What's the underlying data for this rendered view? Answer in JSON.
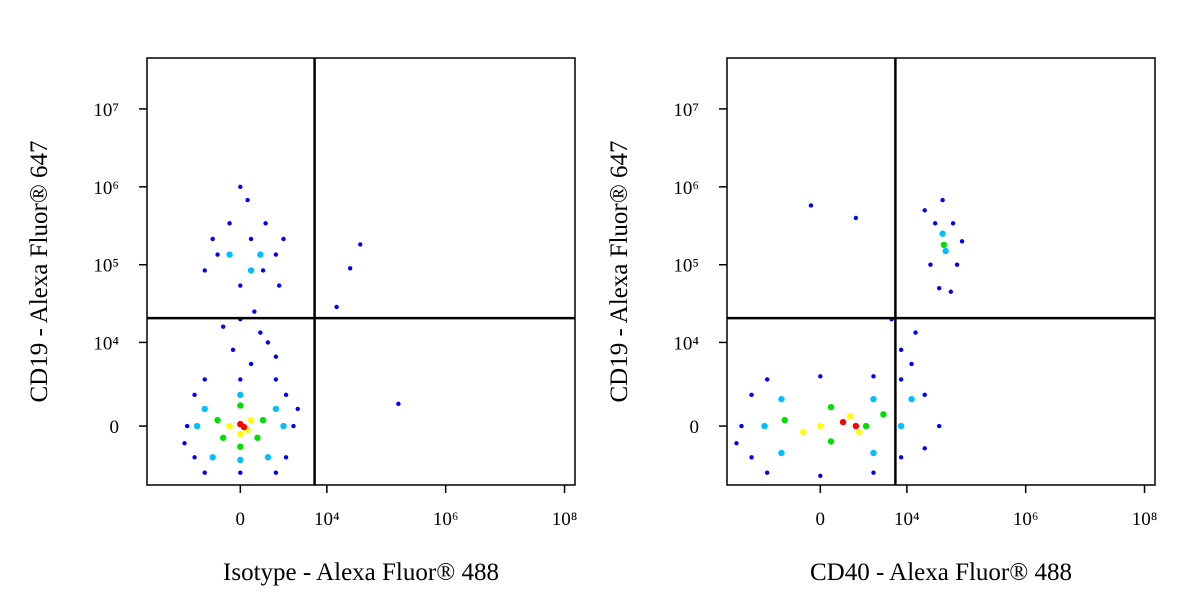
{
  "chart_data": [
    {
      "type": "scatter",
      "xlabel": "Isotype - Alexa Fluor® 488",
      "ylabel": "CD19 - Alexa Fluor® 647",
      "xscale": {
        "type": "arcsinh",
        "cofactor": 700
      },
      "yscale": {
        "type": "arcsinh",
        "cofactor": 1700
      },
      "xlim": [
        -13000,
        150000000
      ],
      "ylim": [
        -4700,
        45000000
      ],
      "xticks": [
        0,
        {
          "value": 10000,
          "label": "10⁴"
        },
        {
          "value": 1000000,
          "label": "10⁶"
        },
        {
          "value": 100000000,
          "label": "10⁸"
        }
      ],
      "yticks": [
        0,
        {
          "value": 10000,
          "label": "10⁴"
        },
        {
          "value": 100000,
          "label": "10⁵"
        },
        {
          "value": 1000000,
          "label": "10⁶"
        },
        {
          "value": 10000000,
          "label": "10⁷"
        }
      ],
      "gates": {
        "x": 6200,
        "y": 20600
      },
      "series": [
        {
          "color": "#0000ff",
          "x": [
            -2700,
            2700,
            -2000,
            2000,
            -2000,
            2000,
            0,
            0,
            -1300,
            1300,
            -1300,
            1300,
            -3000,
            3200,
            300,
            -200,
            600,
            0,
            900,
            -500,
            1300,
            400,
            0,
            700,
            -700,
            1300,
            300,
            -1300,
            1500,
            -300,
            800,
            200,
            -900,
            1800,
            0,
            36500,
            24700,
            14600,
            160000
          ],
          "values": [
            0,
            0,
            1800,
            1800,
            -1800,
            -1800,
            3160,
            -3160,
            3160,
            3160,
            -3160,
            -3160,
            -900,
            900,
            5200,
            8000,
            13400,
            20000,
            10000,
            16000,
            6500,
            25000,
            54000,
            84500,
            135000,
            135000,
            214000,
            84500,
            54000,
            340000,
            340000,
            676000,
            214000,
            214000,
            1000000,
            182000,
            90000,
            28700,
            1200
          ]
        },
        {
          "color": "#00bfff",
          "x": [
            -1300,
            1300,
            -900,
            900,
            0,
            0,
            -1800,
            1800,
            300,
            -300,
            600
          ],
          "values": [
            900,
            900,
            -1800,
            -1800,
            1800,
            -2000,
            0,
            0,
            84500,
            135000,
            135000
          ]
        },
        {
          "color": "#00e000",
          "x": [
            -700,
            700,
            0,
            0,
            -500,
            500
          ],
          "values": [
            300,
            300,
            1100,
            -1100,
            -600,
            -600
          ]
        },
        {
          "color": "#ffff00",
          "x": [
            -300,
            300,
            0,
            200
          ],
          "values": [
            0,
            300,
            -400,
            -200
          ]
        },
        {
          "color": "#ff0000",
          "x": [
            0,
            100
          ],
          "values": [
            100,
            -50
          ]
        }
      ]
    },
    {
      "type": "scatter",
      "xlabel": "CD40 - Alexa Fluor® 488",
      "ylabel": "CD19 - Alexa Fluor® 647",
      "xscale": {
        "type": "arcsinh",
        "cofactor": 700
      },
      "yscale": {
        "type": "arcsinh",
        "cofactor": 1700
      },
      "xlim": [
        -13000,
        150000000
      ],
      "ylim": [
        -4700,
        45000000
      ],
      "xticks": [
        0,
        {
          "value": 10000,
          "label": "10⁴"
        },
        {
          "value": 1000000,
          "label": "10⁶"
        },
        {
          "value": 100000000,
          "label": "10⁸"
        }
      ],
      "yticks": [
        0,
        {
          "value": 10000,
          "label": "10⁴"
        },
        {
          "value": 100000,
          "label": "10⁵"
        },
        {
          "value": 1000000,
          "label": "10⁶"
        },
        {
          "value": 10000000,
          "label": "10⁷"
        }
      ],
      "gates": {
        "x": 6400,
        "y": 20600
      },
      "series": [
        {
          "color": "#0000ff",
          "x": [
            -7400,
            -5000,
            -5000,
            -2700,
            -2700,
            0,
            0,
            2700,
            2700,
            8000,
            8000,
            20000,
            35000,
            20000,
            -9000,
            12000,
            8000,
            14000,
            5500,
            -260,
            1300,
            25000,
            70000,
            30000,
            60000,
            40000,
            35000,
            55000,
            20000,
            85000
          ],
          "values": [
            0,
            1800,
            -1800,
            3160,
            -3160,
            3500,
            -3500,
            3500,
            -3160,
            3160,
            -1800,
            1800,
            0,
            -1200,
            -900,
            5200,
            8000,
            13400,
            20000,
            576000,
            398000,
            100000,
            100000,
            340000,
            340000,
            676000,
            50000,
            45000,
            500000,
            200000
          ]
        },
        {
          "color": "#00bfff",
          "x": [
            -3000,
            -1500,
            -1500,
            2700,
            2700,
            8000,
            12000,
            45000,
            40000
          ],
          "values": [
            0,
            1500,
            -1500,
            1500,
            -1500,
            0,
            1500,
            150000,
            250000
          ]
        },
        {
          "color": "#00e000",
          "x": [
            -1300,
            300,
            300,
            2000,
            4000,
            42000
          ],
          "values": [
            300,
            1000,
            -800,
            0,
            600,
            180000
          ]
        },
        {
          "color": "#ffff00",
          "x": [
            0,
            1000,
            1500,
            -500
          ],
          "values": [
            0,
            500,
            -300,
            -300
          ]
        },
        {
          "color": "#ff0000",
          "x": [
            700,
            1300
          ],
          "values": [
            200,
            0
          ]
        }
      ]
    }
  ]
}
